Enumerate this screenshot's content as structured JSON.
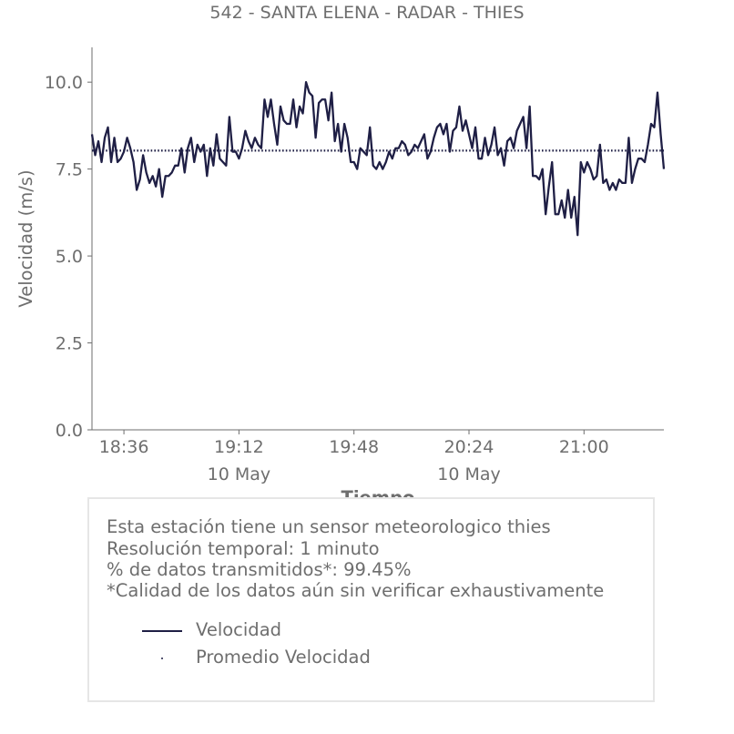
{
  "chart_data": {
    "type": "line",
    "title": "542 - SANTA ELENA - RADAR - THIES",
    "xlabel": "Tiempo",
    "ylabel": "Velocidad (m/s)",
    "ylim": [
      0,
      11
    ],
    "yticks": [
      "0.0",
      "2.5",
      "5.0",
      "7.5",
      "10.0"
    ],
    "ytick_values": [
      0,
      2.5,
      5.0,
      7.5,
      10.0
    ],
    "xlim_minutes": [
      1106,
      1285
    ],
    "xticks": [
      {
        "label": "18:36",
        "minute": 1116,
        "sublabel": ""
      },
      {
        "label": "19:12",
        "minute": 1152,
        "sublabel": "10 May"
      },
      {
        "label": "19:48",
        "minute": 1188,
        "sublabel": ""
      },
      {
        "label": "20:24",
        "minute": 1224,
        "sublabel": "10 May"
      },
      {
        "label": "21:00",
        "minute": 1260,
        "sublabel": ""
      }
    ],
    "grid": false,
    "series": [
      {
        "name": "Velocidad",
        "color": "#1f1f45",
        "style": "solid",
        "start_minute": 1106,
        "step_minutes": 1,
        "values": [
          8.5,
          7.9,
          8.3,
          7.7,
          8.4,
          8.7,
          7.7,
          8.4,
          7.7,
          7.8,
          8.0,
          8.4,
          8.1,
          7.7,
          6.9,
          7.2,
          7.9,
          7.4,
          7.1,
          7.3,
          7.0,
          7.5,
          6.7,
          7.3,
          7.3,
          7.4,
          7.6,
          7.6,
          8.1,
          7.4,
          8.1,
          8.4,
          7.7,
          8.2,
          8.0,
          8.2,
          7.3,
          8.1,
          7.6,
          8.5,
          7.8,
          7.7,
          7.6,
          9.0,
          8.0,
          8.0,
          7.8,
          8.1,
          8.6,
          8.3,
          8.1,
          8.4,
          8.2,
          8.1,
          9.5,
          9.0,
          9.5,
          8.8,
          8.2,
          9.3,
          8.9,
          8.8,
          8.8,
          9.5,
          8.7,
          9.3,
          9.1,
          10.0,
          9.7,
          9.6,
          8.4,
          9.4,
          9.5,
          9.5,
          8.9,
          9.7,
          8.3,
          8.8,
          8.0,
          8.8,
          8.4,
          7.7,
          7.7,
          7.5,
          8.1,
          8.0,
          7.9,
          8.7,
          7.6,
          7.5,
          7.7,
          7.5,
          7.7,
          8.0,
          7.8,
          8.1,
          8.1,
          8.3,
          8.2,
          7.9,
          8.0,
          8.2,
          8.1,
          8.3,
          8.5,
          7.8,
          8.0,
          8.4,
          8.7,
          8.8,
          8.5,
          8.8,
          8.0,
          8.6,
          8.7,
          9.3,
          8.6,
          8.9,
          8.5,
          8.1,
          8.7,
          7.8,
          7.8,
          8.4,
          7.9,
          8.2,
          8.7,
          7.9,
          8.1,
          7.6,
          8.3,
          8.4,
          8.1,
          8.6,
          8.8,
          9.0,
          8.1,
          9.3,
          7.3,
          7.3,
          7.2,
          7.5,
          6.2,
          7.0,
          7.7,
          6.2,
          6.2,
          6.6,
          6.1,
          6.9,
          6.1,
          6.7,
          5.6,
          7.7,
          7.4,
          7.7,
          7.5,
          7.2,
          7.3,
          8.2,
          7.1,
          7.2,
          6.9,
          7.1,
          6.9,
          7.2,
          7.1,
          7.1,
          8.4,
          7.1,
          7.5,
          7.8,
          7.8,
          7.7,
          8.2,
          8.8,
          8.7,
          9.7,
          8.5,
          7.5
        ]
      },
      {
        "name": "Promedio Velocidad",
        "color": "#1f1f45",
        "style": "dotted",
        "value": 8.03
      }
    ],
    "legend": "bottom-inside-box"
  },
  "info": {
    "lines": [
      "Esta estación tiene un sensor meteorologico thies",
      "Resolución temporal: 1 minuto",
      "% de datos transmitidos*: 99.45%",
      "*Calidad de los datos aún sin verificar exhaustivamente"
    ]
  }
}
